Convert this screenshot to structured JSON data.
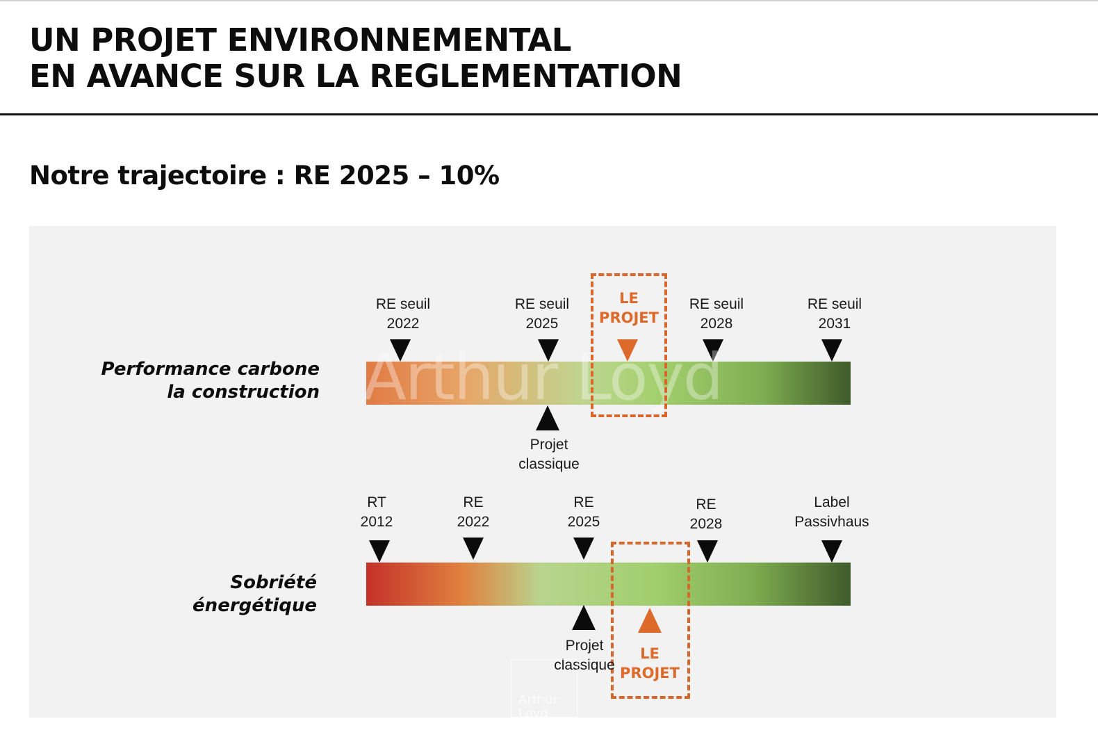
{
  "title": {
    "line1": "UN PROJET ENVIRONNEMENTAL",
    "line2": "EN AVANCE SUR LA REGLEMENTATION"
  },
  "subtitle": "Notre trajectoire : RE 2025 – 10%",
  "colors": {
    "accent_orange": "#dd6a2b",
    "gradient_red": "#c4312a",
    "gradient_light_green": "#a3cf6e",
    "gradient_dark_green": "#3e5a2a",
    "panel_bg": "#f2f2f2"
  },
  "carbon": {
    "label_line1": "Performance carbone",
    "label_line2": "la construction",
    "markers": [
      {
        "line1": "RE seuil",
        "line2": "2022"
      },
      {
        "line1": "RE seuil",
        "line2": "2025"
      },
      {
        "line1": "RE seuil",
        "line2": "2028"
      },
      {
        "line1": "RE seuil",
        "line2": "2031"
      }
    ],
    "projet": {
      "line1": "LE",
      "line2": "PROJET"
    },
    "classique": {
      "line1": "Projet",
      "line2": "classique"
    }
  },
  "energy": {
    "label_line1": "Sobriété",
    "label_line2": "énergétique",
    "markers": [
      {
        "line1": "RT",
        "line2": "2012"
      },
      {
        "line1": "RE",
        "line2": "2022"
      },
      {
        "line1": "RE",
        "line2": "2025"
      },
      {
        "line1": "RE",
        "line2": "2028"
      },
      {
        "line1": "Label",
        "line2": "Passivhaus"
      }
    ],
    "projet": {
      "line1": "LE",
      "line2": "PROJET"
    },
    "classique": {
      "line1": "Projet",
      "line2": "classique"
    }
  },
  "watermark": {
    "main": "Arthur Loyd",
    "small_line1": "Arthur",
    "small_line2": "Loyd"
  }
}
